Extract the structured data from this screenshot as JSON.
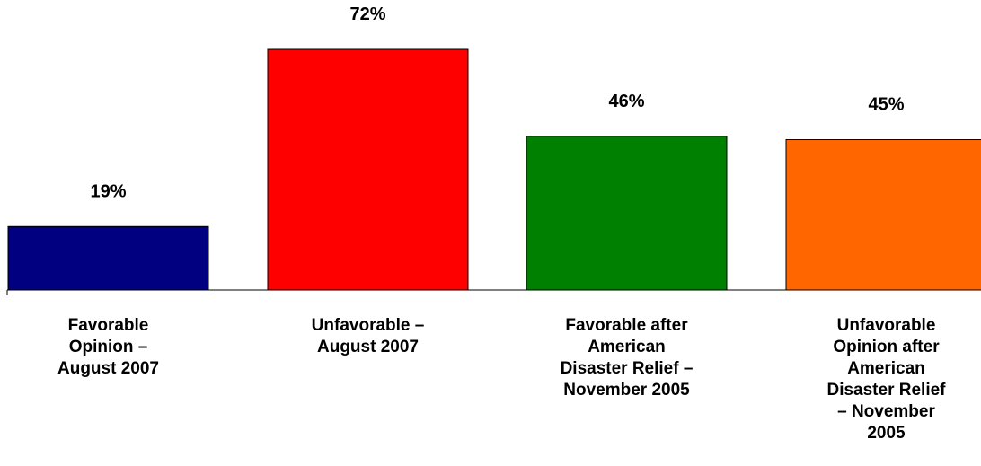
{
  "chart_data": {
    "type": "bar",
    "title": "",
    "xlabel": "",
    "ylabel": "",
    "ylim": [
      0,
      72
    ],
    "grid": false,
    "legend": "none",
    "categories": [
      "Favorable Opinion – August 2007",
      "Unfavorable – August 2007",
      "Favorable after American Disaster Relief – November 2005",
      "Unfavorable Opinion after American Disaster Relief – November 2005"
    ],
    "category_lines": [
      [
        "Favorable",
        "Opinion –",
        "August 2007"
      ],
      [
        "Unfavorable –",
        "August 2007"
      ],
      [
        "Favorable after",
        "American",
        "Disaster Relief –",
        "November 2005"
      ],
      [
        "Unfavorable",
        "Opinion after",
        "American",
        "Disaster Relief",
        "– November",
        "2005"
      ]
    ],
    "values": [
      19,
      72,
      46,
      45
    ],
    "value_labels": [
      "19%",
      "72%",
      "46%",
      "45%"
    ],
    "colors": [
      "#000080",
      "#ff0000",
      "#008000",
      "#ff6600"
    ]
  }
}
